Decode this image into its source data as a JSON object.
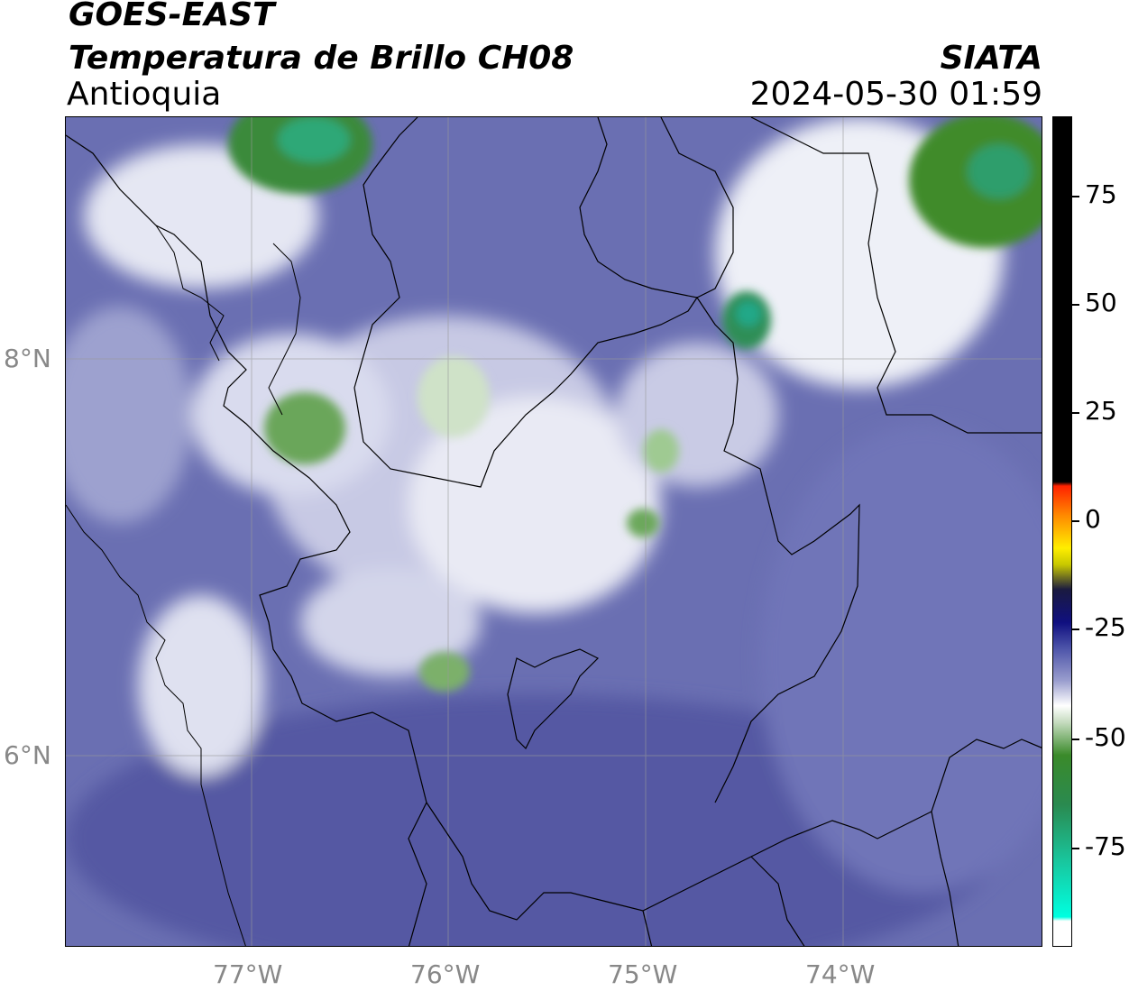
{
  "header": {
    "satellite": "GOES-EAST",
    "product": "Temperatura de Brillo CH08",
    "region": "Antioquia",
    "organization": "SIATA",
    "timestamp": "2024-05-30 01:59"
  },
  "map": {
    "lat_labels": [
      "8°N",
      "6°N"
    ],
    "lon_labels": [
      "77°W",
      "76°W",
      "75°W",
      "74°W"
    ]
  },
  "colorbar": {
    "ticks": [
      "75",
      "50",
      "25",
      "0",
      "-25",
      "-50",
      "-75"
    ],
    "colors": {
      "warm_black": "#000000",
      "red": "#ff2200",
      "yellow": "#ffee00",
      "navy": "#1a1a80",
      "blue": "#5a5fa8",
      "white": "#ffffff",
      "green": "#3a8a2a",
      "cyan": "#00ffe0"
    }
  }
}
